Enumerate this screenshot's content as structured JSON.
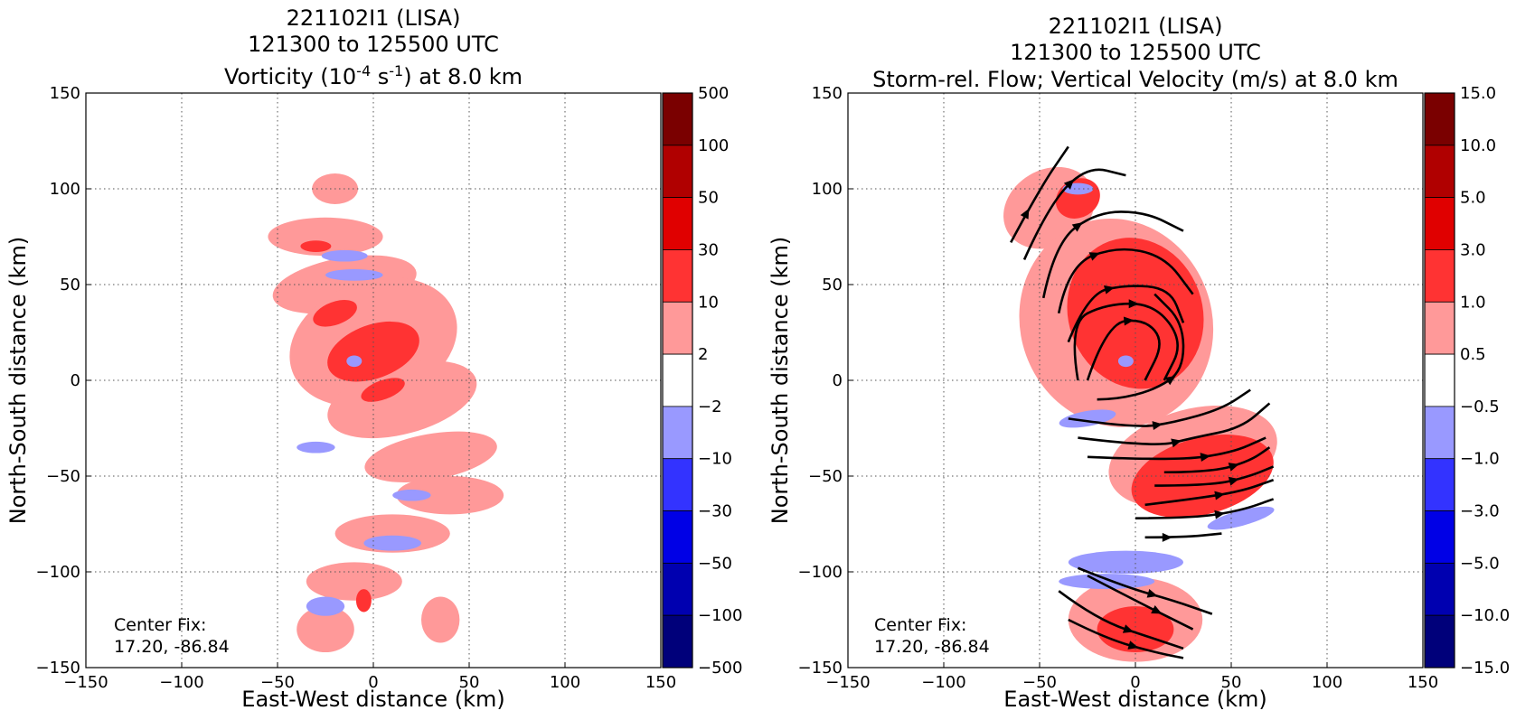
{
  "chart_data": [
    {
      "type": "heatmap",
      "title_lines": [
        "221102I1 (LISA)",
        "121300 to 125500 UTC"
      ],
      "title_third": {
        "prefix": "Vorticity (10",
        "sup1": "-4",
        "mid": " s",
        "sup2": "-1",
        "suffix": ") at 8.0 km"
      },
      "xlabel": "East-West distance (km)",
      "ylabel": "North-South distance (km)",
      "xlim": [
        -150,
        150
      ],
      "ylim": [
        -150,
        150
      ],
      "ticks": [
        "−150",
        "−100",
        "−50",
        "0",
        "50",
        "100",
        "150"
      ],
      "grid": true,
      "annotation": [
        "Center Fix:",
        "17.20, -86.84"
      ],
      "colorbar": {
        "labels": [
          "500",
          "100",
          "50",
          "30",
          "10",
          "2",
          "−2",
          "−10",
          "−30",
          "−50",
          "−100",
          "−500"
        ],
        "colors": [
          "#7a0000",
          "#b00000",
          "#e00000",
          "#ff3333",
          "#ff9999",
          "#ffffff",
          "#9999ff",
          "#3333ff",
          "#0000e6",
          "#0000b0",
          "#00007a"
        ]
      },
      "fields": {
        "light_red": [
          {
            "x": -20,
            "y": 100,
            "rx": 12,
            "ry": 8,
            "rot": 0
          },
          {
            "x": -25,
            "y": 75,
            "rx": 30,
            "ry": 10,
            "rot": 0
          },
          {
            "x": -15,
            "y": 50,
            "rx": 38,
            "ry": 14,
            "rot": -10
          },
          {
            "x": 0,
            "y": 20,
            "rx": 45,
            "ry": 32,
            "rot": -20
          },
          {
            "x": 15,
            "y": -10,
            "rx": 40,
            "ry": 18,
            "rot": -15
          },
          {
            "x": 30,
            "y": -40,
            "rx": 35,
            "ry": 12,
            "rot": -10
          },
          {
            "x": 40,
            "y": -60,
            "rx": 28,
            "ry": 10,
            "rot": 0
          },
          {
            "x": 10,
            "y": -80,
            "rx": 30,
            "ry": 10,
            "rot": 0
          },
          {
            "x": -10,
            "y": -105,
            "rx": 25,
            "ry": 10,
            "rot": 0
          },
          {
            "x": -25,
            "y": -130,
            "rx": 15,
            "ry": 12,
            "rot": 0
          },
          {
            "x": 35,
            "y": -125,
            "rx": 10,
            "ry": 12,
            "rot": 0
          }
        ],
        "red": [
          {
            "x": -30,
            "y": 70,
            "rx": 8,
            "ry": 3,
            "rot": 0
          },
          {
            "x": -20,
            "y": 35,
            "rx": 12,
            "ry": 6,
            "rot": -20
          },
          {
            "x": 0,
            "y": 15,
            "rx": 25,
            "ry": 14,
            "rot": -20
          },
          {
            "x": 5,
            "y": -5,
            "rx": 12,
            "ry": 5,
            "rot": -20
          },
          {
            "x": -5,
            "y": -115,
            "rx": 4,
            "ry": 6,
            "rot": 0
          }
        ],
        "blue": [
          {
            "x": -15,
            "y": 65,
            "rx": 12,
            "ry": 3,
            "rot": 0
          },
          {
            "x": -10,
            "y": 55,
            "rx": 15,
            "ry": 3,
            "rot": 0
          },
          {
            "x": -30,
            "y": -35,
            "rx": 10,
            "ry": 3,
            "rot": 0
          },
          {
            "x": 20,
            "y": -60,
            "rx": 10,
            "ry": 3,
            "rot": 0
          },
          {
            "x": 10,
            "y": -85,
            "rx": 15,
            "ry": 4,
            "rot": 0
          },
          {
            "x": -25,
            "y": -118,
            "rx": 10,
            "ry": 5,
            "rot": 0
          },
          {
            "x": -10,
            "y": 10,
            "rx": 4,
            "ry": 3,
            "rot": 0
          }
        ]
      }
    },
    {
      "type": "heatmap",
      "title_lines": [
        "221102I1 (LISA)",
        "121300 to 125500 UTC",
        "Storm-rel. Flow; Vertical Velocity (m/s) at 8.0 km"
      ],
      "xlabel": "East-West distance (km)",
      "ylabel": "North-South distance (km)",
      "xlim": [
        -150,
        150
      ],
      "ylim": [
        -150,
        150
      ],
      "ticks": [
        "−150",
        "−100",
        "−50",
        "0",
        "50",
        "100",
        "150"
      ],
      "grid": true,
      "annotation": [
        "Center Fix:",
        "17.20, -86.84"
      ],
      "colorbar": {
        "labels": [
          "15.0",
          "10.0",
          "5.0",
          "3.0",
          "1.0",
          "0.5",
          "−0.5",
          "−1.0",
          "−3.0",
          "−5.0",
          "−10.0",
          "−15.0"
        ],
        "colors": [
          "#7a0000",
          "#b00000",
          "#e00000",
          "#ff3333",
          "#ff9999",
          "#ffffff",
          "#9999ff",
          "#3333ff",
          "#0000e6",
          "#0000b0",
          "#00007a"
        ]
      },
      "fields": {
        "light_red": [
          {
            "x": -45,
            "y": 90,
            "rx": 25,
            "ry": 20,
            "rot": -30
          },
          {
            "x": -10,
            "y": 30,
            "rx": 50,
            "ry": 55,
            "rot": -20
          },
          {
            "x": 30,
            "y": -40,
            "rx": 45,
            "ry": 25,
            "rot": -15
          },
          {
            "x": 0,
            "y": -125,
            "rx": 35,
            "ry": 22,
            "rot": 0
          }
        ],
        "red": [
          {
            "x": -30,
            "y": 95,
            "rx": 12,
            "ry": 10,
            "rot": -30
          },
          {
            "x": 0,
            "y": 35,
            "rx": 35,
            "ry": 40,
            "rot": -20
          },
          {
            "x": 35,
            "y": -50,
            "rx": 38,
            "ry": 20,
            "rot": -15
          },
          {
            "x": 0,
            "y": -130,
            "rx": 20,
            "ry": 12,
            "rot": 0
          }
        ],
        "blue": [
          {
            "x": -25,
            "y": -20,
            "rx": 15,
            "ry": 4,
            "rot": -10
          },
          {
            "x": 55,
            "y": -72,
            "rx": 18,
            "ry": 4,
            "rot": -15
          },
          {
            "x": -5,
            "y": -95,
            "rx": 30,
            "ry": 6,
            "rot": 0
          },
          {
            "x": -15,
            "y": -105,
            "rx": 25,
            "ry": 4,
            "rot": 0
          },
          {
            "x": -5,
            "y": 10,
            "rx": 4,
            "ry": 3,
            "rot": 0
          },
          {
            "x": -30,
            "y": 100,
            "rx": 8,
            "ry": 3,
            "rot": 0
          }
        ]
      },
      "streamlines": [
        [
          [
            -65,
            72
          ],
          [
            -50,
            100
          ],
          [
            -35,
            122
          ]
        ],
        [
          [
            -58,
            63
          ],
          [
            -45,
            92
          ],
          [
            -25,
            112
          ],
          [
            -5,
            107
          ]
        ],
        [
          [
            -48,
            43
          ],
          [
            -42,
            72
          ],
          [
            -20,
            88
          ],
          [
            5,
            88
          ],
          [
            25,
            78
          ]
        ],
        [
          [
            -40,
            35
          ],
          [
            -35,
            60
          ],
          [
            -10,
            70
          ],
          [
            15,
            65
          ],
          [
            30,
            45
          ]
        ],
        [
          [
            -35,
            20
          ],
          [
            -25,
            45
          ],
          [
            -5,
            50
          ],
          [
            18,
            48
          ],
          [
            25,
            30
          ]
        ],
        [
          [
            -30,
            0
          ],
          [
            -35,
            30
          ],
          [
            -15,
            40
          ],
          [
            10,
            40
          ],
          [
            25,
            20
          ],
          [
            15,
            0
          ]
        ],
        [
          [
            -25,
            0
          ],
          [
            -15,
            30
          ],
          [
            5,
            32
          ],
          [
            15,
            20
          ],
          [
            5,
            0
          ]
        ],
        [
          [
            -20,
            -10
          ],
          [
            -10,
            -10
          ],
          [
            10,
            -5
          ],
          [
            25,
            5
          ],
          [
            25,
            30
          ],
          [
            10,
            45
          ]
        ],
        [
          [
            -35,
            -20
          ],
          [
            0,
            -25
          ],
          [
            20,
            -22
          ],
          [
            45,
            -15
          ],
          [
            60,
            -5
          ]
        ],
        [
          [
            -30,
            -30
          ],
          [
            10,
            -35
          ],
          [
            30,
            -30
          ],
          [
            55,
            -25
          ],
          [
            70,
            -12
          ]
        ],
        [
          [
            -25,
            -40
          ],
          [
            20,
            -42
          ],
          [
            50,
            -38
          ],
          [
            68,
            -30
          ]
        ],
        [
          [
            15,
            -48
          ],
          [
            40,
            -48
          ],
          [
            60,
            -42
          ],
          [
            70,
            -35
          ]
        ],
        [
          [
            10,
            -55
          ],
          [
            40,
            -55
          ],
          [
            60,
            -50
          ],
          [
            72,
            -45
          ]
        ],
        [
          [
            5,
            -65
          ],
          [
            30,
            -62
          ],
          [
            55,
            -58
          ],
          [
            72,
            -52
          ]
        ],
        [
          [
            0,
            -72
          ],
          [
            30,
            -72
          ],
          [
            55,
            -68
          ],
          [
            72,
            -62
          ]
        ],
        [
          [
            5,
            -82
          ],
          [
            25,
            -82
          ],
          [
            45,
            -80
          ]
        ],
        [
          [
            -30,
            -98
          ],
          [
            -5,
            -108
          ],
          [
            20,
            -115
          ],
          [
            40,
            -122
          ]
        ],
        [
          [
            -25,
            -102
          ],
          [
            0,
            -115
          ],
          [
            20,
            -125
          ],
          [
            30,
            -130
          ]
        ],
        [
          [
            -40,
            -110
          ],
          [
            -20,
            -125
          ],
          [
            10,
            -135
          ],
          [
            25,
            -140
          ]
        ],
        [
          [
            -35,
            -125
          ],
          [
            -15,
            -135
          ],
          [
            10,
            -142
          ],
          [
            25,
            -145
          ]
        ]
      ]
    }
  ]
}
